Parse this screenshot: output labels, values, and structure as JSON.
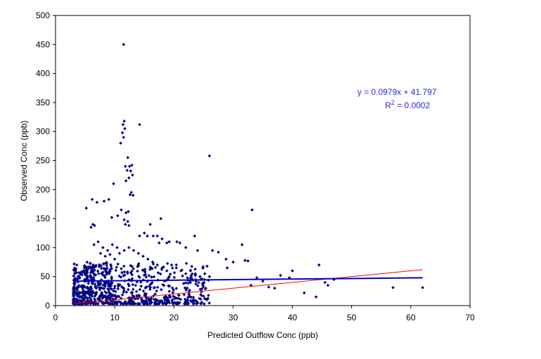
{
  "chart_data": {
    "type": "scatter",
    "xlabel": "Predicted Outflow Conc (ppb)",
    "ylabel": "Observed Conc (ppb)",
    "xlim": [
      0,
      70
    ],
    "ylim": [
      0,
      500
    ],
    "x_ticks": [
      "0",
      "10",
      "20",
      "30",
      "40",
      "50",
      "60",
      "70"
    ],
    "y_ticks": [
      "0",
      "50",
      "100",
      "150",
      "200",
      "250",
      "300",
      "350",
      "400",
      "450",
      "500"
    ],
    "grid": false,
    "legend": "none",
    "marker_color": "#000080",
    "trendline": {
      "label_line1": "y = 0.0979x + 41.797",
      "label_r2_prefix": "R",
      "label_r2_exp": "2",
      "label_r2_suffix": " = 0.0002",
      "x": [
        3,
        62
      ],
      "y": [
        42.1,
        47.9
      ],
      "color": "#0000cc"
    },
    "reference_line": {
      "x": [
        3,
        62
      ],
      "y": [
        3,
        62
      ],
      "color": "#ff0000"
    },
    "points": [
      [
        11.5,
        450
      ],
      [
        11.6,
        318
      ],
      [
        11.4,
        312
      ],
      [
        11.7,
        305
      ],
      [
        11.3,
        298
      ],
      [
        11.5,
        290
      ],
      [
        14.2,
        312
      ],
      [
        11.0,
        280
      ],
      [
        12.2,
        255
      ],
      [
        26.0,
        258
      ],
      [
        11.8,
        240
      ],
      [
        12.5,
        240
      ],
      [
        12.9,
        242
      ],
      [
        12.1,
        233
      ],
      [
        12.7,
        232
      ],
      [
        13.0,
        225
      ],
      [
        12.4,
        220
      ],
      [
        11.9,
        215
      ],
      [
        9.8,
        210
      ],
      [
        12.8,
        195
      ],
      [
        13.1,
        190
      ],
      [
        12.6,
        191
      ],
      [
        33.2,
        165
      ],
      [
        6.2,
        183
      ],
      [
        7.0,
        178
      ],
      [
        8.2,
        180
      ],
      [
        9.0,
        183
      ],
      [
        5.2,
        168
      ],
      [
        11.1,
        165
      ],
      [
        11.9,
        160
      ],
      [
        12.3,
        162
      ],
      [
        10.5,
        155
      ],
      [
        9.5,
        152
      ],
      [
        11.6,
        148
      ],
      [
        12.2,
        145
      ],
      [
        11.8,
        140
      ],
      [
        12.4,
        138
      ],
      [
        6.3,
        140
      ],
      [
        6.6,
        138
      ],
      [
        6.0,
        135
      ],
      [
        17.8,
        150
      ],
      [
        16.0,
        140
      ],
      [
        15.0,
        125
      ],
      [
        14.2,
        120
      ],
      [
        15.5,
        120
      ],
      [
        16.5,
        120
      ],
      [
        17.2,
        120
      ],
      [
        18.0,
        115
      ],
      [
        19.2,
        110
      ],
      [
        20.5,
        110
      ],
      [
        17.5,
        108
      ],
      [
        18.8,
        108
      ],
      [
        21.0,
        108
      ],
      [
        23.5,
        120
      ],
      [
        22.0,
        100
      ],
      [
        24.0,
        95
      ],
      [
        26.5,
        95
      ],
      [
        27.5,
        92
      ],
      [
        31.5,
        105
      ],
      [
        32.0,
        78
      ],
      [
        32.5,
        77
      ],
      [
        28.8,
        80
      ],
      [
        30.0,
        75
      ],
      [
        29.0,
        65
      ],
      [
        44.5,
        70
      ],
      [
        40.0,
        60
      ],
      [
        38.0,
        52
      ],
      [
        39.5,
        48
      ],
      [
        47.0,
        45
      ],
      [
        45.5,
        40
      ],
      [
        46.0,
        35
      ],
      [
        33.0,
        35
      ],
      [
        36.0,
        32
      ],
      [
        37.0,
        30
      ],
      [
        42.0,
        22
      ],
      [
        44.0,
        15
      ],
      [
        57.0,
        31
      ],
      [
        62.0,
        31
      ],
      [
        34.0,
        48
      ],
      [
        35.0,
        42
      ],
      [
        6.5,
        105
      ],
      [
        7.2,
        110
      ],
      [
        8.0,
        100
      ],
      [
        8.8,
        95
      ],
      [
        9.6,
        105
      ],
      [
        10.4,
        100
      ],
      [
        7.6,
        90
      ],
      [
        8.4,
        85
      ],
      [
        9.2,
        88
      ],
      [
        10.0,
        80
      ],
      [
        10.8,
        90
      ],
      [
        11.6,
        95
      ],
      [
        12.4,
        100
      ],
      [
        13.2,
        95
      ],
      [
        14.0,
        90
      ],
      [
        14.8,
        85
      ],
      [
        15.6,
        80
      ],
      [
        16.4,
        75
      ],
      [
        17.2,
        70
      ],
      [
        18.0,
        65
      ],
      [
        18.8,
        60
      ],
      [
        19.6,
        70
      ],
      [
        20.4,
        65
      ],
      [
        21.2,
        60
      ],
      [
        22.0,
        55
      ],
      [
        22.8,
        60
      ],
      [
        23.6,
        55
      ],
      [
        24.4,
        50
      ],
      [
        25.2,
        55
      ],
      [
        26.0,
        50
      ]
    ]
  }
}
